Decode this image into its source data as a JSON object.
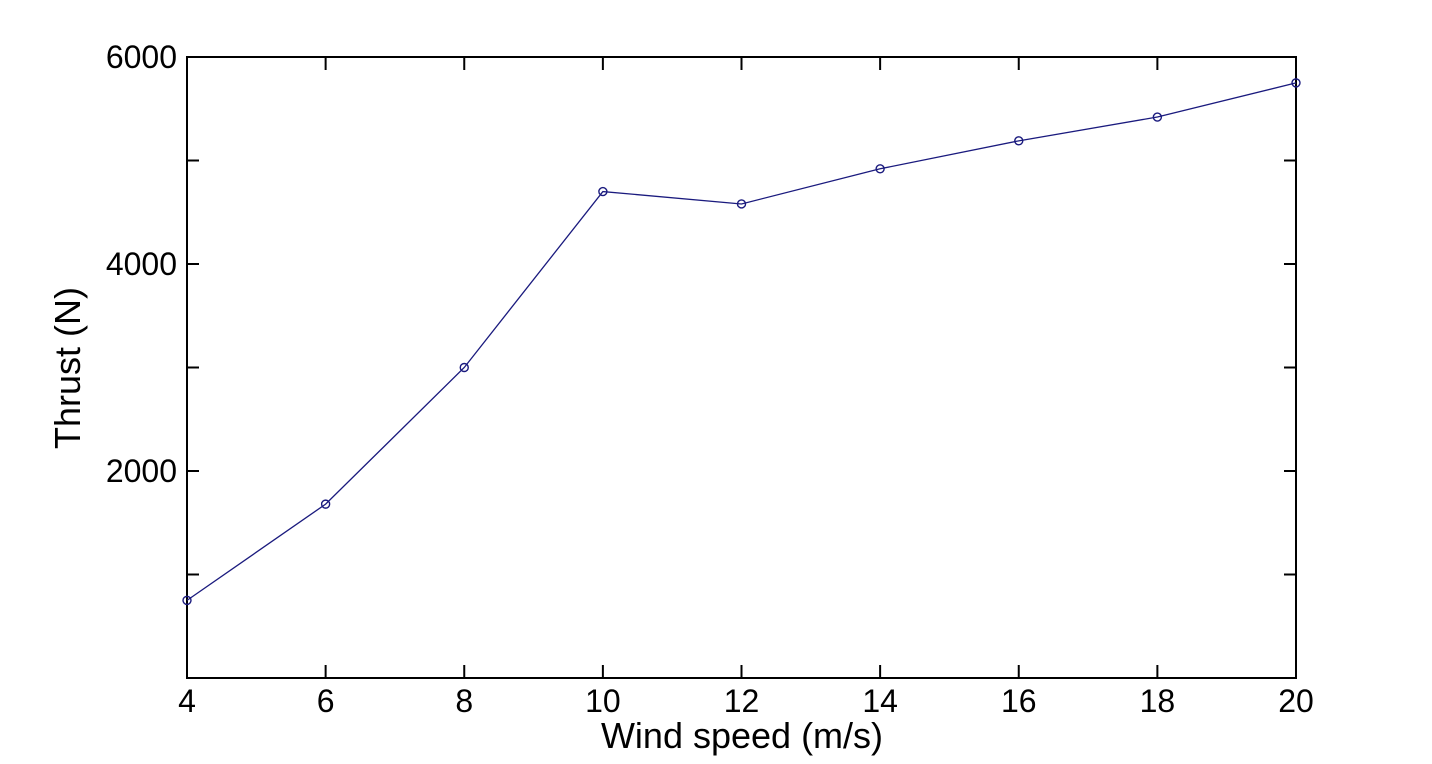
{
  "figure": {
    "background": "#ffffff",
    "title": ""
  },
  "chart_data": {
    "type": "line",
    "title": "",
    "xlabel": "Wind speed (m/s)",
    "ylabel": "Thrust (N)",
    "x": [
      4,
      6,
      8,
      10,
      12,
      14,
      16,
      18,
      20
    ],
    "y": [
      750,
      1680,
      3000,
      4700,
      4580,
      4920,
      5190,
      5420,
      5750
    ],
    "series": [
      {
        "name": "Thrust",
        "x": [
          4,
          6,
          8,
          10,
          12,
          14,
          16,
          18,
          20
        ],
        "y": [
          750,
          1680,
          3000,
          4700,
          4580,
          4920,
          5190,
          5420,
          5750
        ]
      }
    ],
    "xlim": [
      4,
      20
    ],
    "ylim": [
      0,
      6000
    ],
    "xticks": [
      4,
      6,
      8,
      10,
      12,
      14,
      16,
      18,
      20
    ],
    "xtick_labels": [
      "4",
      "6",
      "8",
      "10",
      "12",
      "14",
      "16",
      "18",
      "20"
    ],
    "yticks": [
      0,
      1000,
      2000,
      3000,
      4000,
      5000,
      6000
    ],
    "ytick_labels": [
      "",
      "",
      "2000",
      "",
      "4000",
      "",
      "6000"
    ],
    "grid": false,
    "legend": null,
    "marker": "open-circle",
    "line_color": "#1a1a7e",
    "marker_color": "#1a1a7e",
    "axis_color": "#000000",
    "plot_background": "#ffffff",
    "tick_direction": "in",
    "box": true
  }
}
